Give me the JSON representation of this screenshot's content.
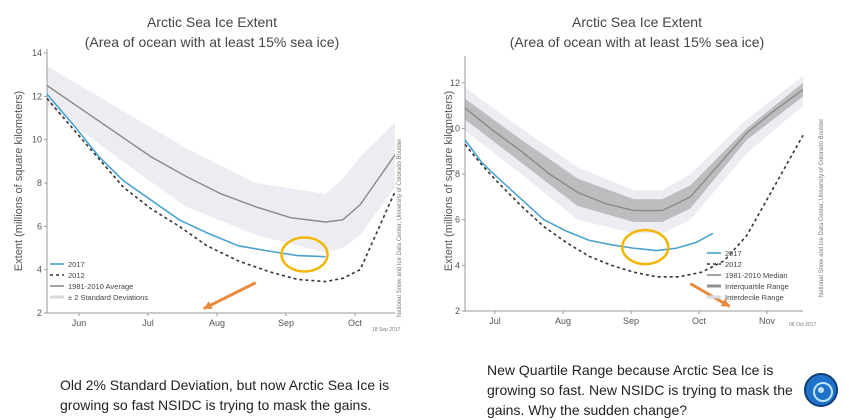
{
  "colors": {
    "obs2017": "#4aa3cf",
    "year2012": "#333333",
    "average": "#8a8a8a",
    "band_outer": "#ececf2",
    "band_inner": "#c7c7ca",
    "circle": "#f2b705",
    "arrow": "#e98a3e"
  },
  "chart_data": [
    {
      "type": "line",
      "title": "Arctic Sea Ice Extent",
      "subtitle": "(Area of ocean with at least 15% sea ice)",
      "ylabel": "Extent (millions of square kilometers)",
      "ylim": [
        2,
        14
      ],
      "yticks": [
        2,
        4,
        6,
        8,
        10,
        12,
        14
      ],
      "xlabels": [
        "Jun",
        "Jul",
        "Aug",
        "Sep",
        "Oct"
      ],
      "credit": "National Snow and Ice Data Center, University of Colorado Boulder",
      "date_stamp": "18 Sep 2017",
      "legend_position": "bottom-left",
      "series": [
        {
          "name": "2017",
          "style": "solid",
          "x": [
            0,
            8,
            15,
            22,
            30,
            38,
            46,
            55,
            64,
            72,
            80
          ],
          "y": [
            12.1,
            10.6,
            9.2,
            8.1,
            7.2,
            6.3,
            5.7,
            5.1,
            4.85,
            4.65,
            4.6
          ]
        },
        {
          "name": "2012",
          "style": "dashed",
          "x": [
            0,
            8,
            15,
            22,
            30,
            38,
            46,
            55,
            64,
            72,
            80,
            85,
            90,
            100
          ],
          "y": [
            11.9,
            10.4,
            9.1,
            7.8,
            6.8,
            6.0,
            5.1,
            4.4,
            3.9,
            3.55,
            3.45,
            3.6,
            4.0,
            7.6
          ]
        },
        {
          "name": "1981-2010 Average",
          "style": "solid",
          "x": [
            0,
            10,
            20,
            30,
            40,
            50,
            60,
            70,
            80,
            85,
            90,
            100
          ],
          "y": [
            12.5,
            11.4,
            10.3,
            9.2,
            8.3,
            7.5,
            6.9,
            6.4,
            6.2,
            6.3,
            7.0,
            9.3
          ]
        }
      ],
      "band": {
        "name": "± 2 Standard Deviations",
        "x": [
          0,
          20,
          40,
          60,
          80,
          85,
          90,
          100
        ],
        "upper": [
          13.4,
          11.5,
          9.6,
          8.0,
          7.5,
          8.2,
          9.2,
          10.8
        ],
        "lower": [
          11.6,
          9.2,
          6.9,
          5.6,
          4.8,
          5.0,
          5.6,
          7.8
        ]
      },
      "highlight": {
        "x": 74,
        "y": 4.7
      },
      "arrow": {
        "from": [
          60,
          3.4
        ],
        "to": [
          45,
          2.2
        ]
      }
    },
    {
      "type": "line",
      "title": "Arctic Sea Ice Extent",
      "subtitle": "(Area of ocean with at least 15% sea ice)",
      "ylabel": "Extent (millions of square kilometers)",
      "ylim": [
        2,
        13
      ],
      "yticks": [
        2,
        4,
        6,
        8,
        10,
        12
      ],
      "xlabels": [
        "Jul",
        "Aug",
        "Sep",
        "Oct",
        "Nov"
      ],
      "credit": "National Snow and Ice Data Center, University of Colorado Boulder",
      "date_stamp": "06 Oct 2017",
      "legend_position": "bottom-right",
      "series": [
        {
          "name": "2017",
          "style": "solid",
          "x": [
            0,
            6,
            12,
            20,
            28,
            36,
            44,
            52,
            60,
            68,
            75,
            82,
            88
          ],
          "y": [
            9.5,
            8.5,
            7.8,
            6.9,
            6.0,
            5.5,
            5.1,
            4.9,
            4.75,
            4.65,
            4.75,
            5.0,
            5.4
          ]
        },
        {
          "name": "2012",
          "style": "dashed",
          "x": [
            0,
            6,
            12,
            20,
            28,
            36,
            44,
            52,
            60,
            68,
            76,
            84,
            92,
            100,
            110,
            120
          ],
          "y": [
            9.3,
            8.4,
            7.6,
            6.6,
            5.7,
            5.0,
            4.4,
            4.0,
            3.7,
            3.5,
            3.5,
            3.7,
            4.2,
            5.3,
            7.5,
            9.7
          ]
        },
        {
          "name": "1981-2010 Median",
          "style": "solid",
          "x": [
            0,
            10,
            20,
            30,
            40,
            50,
            60,
            70,
            80,
            90,
            100,
            110,
            120
          ],
          "y": [
            10.9,
            9.9,
            9.0,
            8.0,
            7.2,
            6.7,
            6.4,
            6.4,
            7.0,
            8.4,
            9.8,
            10.8,
            11.7
          ]
        }
      ],
      "band": {
        "name": "Interdecile Range",
        "x": [
          0,
          20,
          40,
          60,
          70,
          80,
          100,
          120
        ],
        "upper": [
          11.8,
          10.0,
          8.3,
          7.3,
          7.3,
          8.0,
          10.4,
          12.3
        ],
        "lower": [
          9.9,
          8.0,
          6.0,
          5.4,
          5.4,
          6.0,
          8.9,
          11.0
        ]
      },
      "band2": {
        "name": "Interquartile Range",
        "x": [
          0,
          20,
          40,
          60,
          70,
          80,
          100,
          120
        ],
        "upper": [
          11.3,
          9.5,
          7.8,
          6.9,
          6.9,
          7.5,
          10.0,
          12.0
        ],
        "lower": [
          10.4,
          8.5,
          6.6,
          5.9,
          5.9,
          6.5,
          9.5,
          11.4
        ]
      },
      "highlight": {
        "x": 64,
        "y": 4.8
      },
      "arrow": {
        "from": [
          80,
          3.2
        ],
        "to": [
          94,
          2.2
        ]
      }
    }
  ],
  "captions": {
    "left": "Old 2% Standard Deviation, but now Arctic Sea Ice is growing so fast NSIDC is trying to mask the gains.",
    "right": "New Quartile Range because Arctic Sea Ice is growing so fast. New NSIDC is trying to mask the gains. Why the sudden change?"
  },
  "play_icon": "circular-logo-icon"
}
